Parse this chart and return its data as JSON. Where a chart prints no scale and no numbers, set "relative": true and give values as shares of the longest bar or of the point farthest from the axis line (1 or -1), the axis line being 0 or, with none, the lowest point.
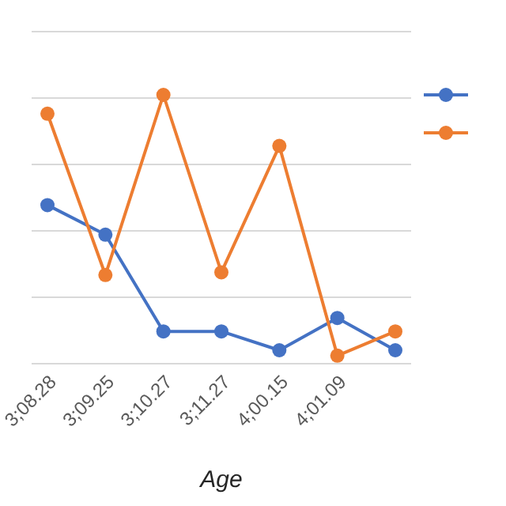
{
  "chart_data": {
    "type": "line",
    "xlabel": "Age",
    "categories": [
      "3;08.28",
      "3;09.25",
      "3;10.27",
      "3;11.27",
      "4;00.15",
      "4;01.09",
      null
    ],
    "series": [
      {
        "color": "#4472c4",
        "values": [
          0.59,
          0.48,
          0.12,
          0.12,
          0.05,
          0.17,
          0.05
        ]
      },
      {
        "color": "#ed7d31",
        "values": [
          0.93,
          0.33,
          1,
          0.34,
          0.81,
          0.03,
          0.12
        ]
      }
    ],
    "relative": true,
    "grid": true,
    "marker": "circle",
    "line_style": "solid"
  }
}
